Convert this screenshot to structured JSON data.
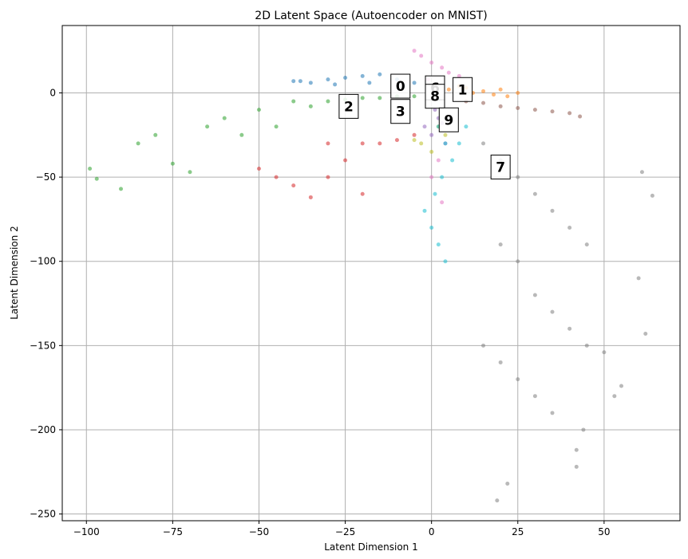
{
  "chart_data": {
    "type": "scatter",
    "title": "2D Latent Space (Autoencoder on MNIST)",
    "xlabel": "Latent Dimension 1",
    "ylabel": "Latent Dimension 2",
    "xlim": [
      -107,
      72
    ],
    "ylim": [
      -254,
      40
    ],
    "x_ticks": [
      -100,
      -75,
      -50,
      -25,
      0,
      25,
      50
    ],
    "y_ticks": [
      0,
      -50,
      -100,
      -150,
      -200,
      -250
    ],
    "x_tick_labels": [
      "−100",
      "−75",
      "−50",
      "−25",
      "0",
      "25",
      "50"
    ],
    "y_tick_labels": [
      "0",
      "−50",
      "−100",
      "−150",
      "−200",
      "−250"
    ],
    "grid": true,
    "legend": "none",
    "series": [
      {
        "color": "#1f77b4",
        "points": [
          [
            -40,
            7
          ],
          [
            -35,
            6
          ],
          [
            -30,
            8
          ],
          [
            -25,
            9
          ],
          [
            -20,
            10
          ],
          [
            -15,
            11
          ],
          [
            -10,
            8
          ],
          [
            -5,
            6
          ],
          [
            -8,
            4
          ],
          [
            -18,
            6
          ],
          [
            -28,
            5
          ],
          [
            -38,
            7
          ]
        ]
      },
      {
        "color": "#ff7f0e",
        "points": [
          [
            5,
            2
          ],
          [
            10,
            3
          ],
          [
            15,
            1
          ],
          [
            20,
            2
          ],
          [
            18,
            -1
          ],
          [
            12,
            0
          ],
          [
            8,
            4
          ],
          [
            22,
            -2
          ],
          [
            25,
            0
          ]
        ]
      },
      {
        "color": "#2ca02c",
        "points": [
          [
            -99,
            -45
          ],
          [
            -97,
            -51
          ],
          [
            -90,
            -57
          ],
          [
            -85,
            -30
          ],
          [
            -80,
            -25
          ],
          [
            -75,
            -42
          ],
          [
            -70,
            -47
          ],
          [
            -65,
            -20
          ],
          [
            -60,
            -15
          ],
          [
            -55,
            -25
          ],
          [
            -50,
            -10
          ],
          [
            -45,
            -20
          ],
          [
            -40,
            -5
          ],
          [
            -35,
            -8
          ],
          [
            -30,
            -5
          ],
          [
            -25,
            -4
          ],
          [
            -20,
            -3
          ],
          [
            -15,
            -3
          ],
          [
            -10,
            -2
          ],
          [
            -5,
            -2
          ]
        ]
      },
      {
        "color": "#d62728",
        "points": [
          [
            -50,
            -45
          ],
          [
            -45,
            -50
          ],
          [
            -40,
            -55
          ],
          [
            -35,
            -62
          ],
          [
            -30,
            -50
          ],
          [
            -25,
            -40
          ],
          [
            -20,
            -30
          ],
          [
            -15,
            -30
          ],
          [
            -10,
            -28
          ],
          [
            -5,
            -25
          ],
          [
            -20,
            -60
          ],
          [
            -30,
            -30
          ]
        ]
      },
      {
        "color": "#9467bd",
        "points": [
          [
            -2,
            -20
          ],
          [
            0,
            -25
          ],
          [
            2,
            -15
          ],
          [
            4,
            -30
          ],
          [
            1,
            -10
          ],
          [
            3,
            -18
          ]
        ]
      },
      {
        "color": "#8c564b",
        "points": [
          [
            10,
            -5
          ],
          [
            15,
            -6
          ],
          [
            20,
            -8
          ],
          [
            25,
            -9
          ],
          [
            30,
            -10
          ],
          [
            35,
            -11
          ],
          [
            40,
            -12
          ],
          [
            43,
            -14
          ]
        ]
      },
      {
        "color": "#e377c2",
        "points": [
          [
            -5,
            25
          ],
          [
            -3,
            22
          ],
          [
            0,
            18
          ],
          [
            3,
            15
          ],
          [
            5,
            12
          ],
          [
            8,
            10
          ],
          [
            -1,
            8
          ],
          [
            2,
            -40
          ],
          [
            0,
            -50
          ],
          [
            3,
            -65
          ]
        ]
      },
      {
        "color": "#7f7f7f",
        "points": [
          [
            15,
            -30
          ],
          [
            20,
            -40
          ],
          [
            25,
            -50
          ],
          [
            30,
            -60
          ],
          [
            35,
            -70
          ],
          [
            40,
            -80
          ],
          [
            45,
            -90
          ],
          [
            20,
            -90
          ],
          [
            25,
            -100
          ],
          [
            30,
            -120
          ],
          [
            35,
            -130
          ],
          [
            40,
            -140
          ],
          [
            45,
            -150
          ],
          [
            15,
            -150
          ],
          [
            20,
            -160
          ],
          [
            25,
            -170
          ],
          [
            30,
            -180
          ],
          [
            35,
            -190
          ],
          [
            42,
            -212
          ],
          [
            42,
            -222
          ],
          [
            22,
            -232
          ],
          [
            19,
            -242
          ],
          [
            50,
            -154
          ],
          [
            55,
            -174
          ],
          [
            61,
            -47
          ],
          [
            64,
            -61
          ],
          [
            62,
            -143
          ],
          [
            60,
            -110
          ],
          [
            53,
            -180
          ],
          [
            44,
            -200
          ]
        ]
      },
      {
        "color": "#bcbd22",
        "points": [
          [
            -3,
            -30
          ],
          [
            0,
            -35
          ],
          [
            2,
            -20
          ],
          [
            -5,
            -28
          ],
          [
            4,
            -25
          ]
        ]
      },
      {
        "color": "#17becf",
        "points": [
          [
            2,
            -20
          ],
          [
            4,
            -30
          ],
          [
            6,
            -40
          ],
          [
            3,
            -50
          ],
          [
            1,
            -60
          ],
          [
            -2,
            -70
          ],
          [
            0,
            -80
          ],
          [
            2,
            -90
          ],
          [
            4,
            -100
          ],
          [
            8,
            -30
          ],
          [
            10,
            -20
          ]
        ]
      }
    ],
    "cluster_labels": [
      {
        "text": "0",
        "x": -9,
        "y": 4,
        "border": "#1f77b4"
      },
      {
        "text": "6",
        "x": 1,
        "y": 3,
        "border": "#e377c2"
      },
      {
        "text": "1",
        "x": 9,
        "y": 2,
        "border": "#ff7f0e"
      },
      {
        "text": "8",
        "x": 1,
        "y": -2,
        "border": "#bcbd22"
      },
      {
        "text": "2",
        "x": -24,
        "y": -8,
        "border": "#2ca02c"
      },
      {
        "text": "3",
        "x": -9,
        "y": -11,
        "border": "#d62728"
      },
      {
        "text": "9",
        "x": 5,
        "y": -16,
        "border": "#17becf"
      },
      {
        "text": "7",
        "x": 20,
        "y": -44,
        "border": "#7f7f7f"
      }
    ]
  }
}
